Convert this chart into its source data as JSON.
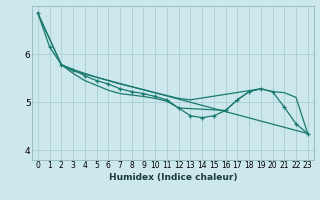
{
  "xlabel": "Humidex (Indice chaleur)",
  "bg_color": "#cce8ed",
  "grid_color": "#aacdd4",
  "line_color": "#1a7a6e",
  "xlim": [
    -0.5,
    23.5
  ],
  "ylim": [
    3.8,
    7.0
  ],
  "yticks": [
    4,
    5,
    6
  ],
  "xticks": [
    0,
    1,
    2,
    3,
    4,
    5,
    6,
    7,
    8,
    9,
    10,
    11,
    12,
    13,
    14,
    15,
    16,
    17,
    18,
    19,
    20,
    21,
    22,
    23
  ],
  "series": [
    {
      "x": [
        0,
        1,
        2,
        3,
        4,
        5,
        6,
        7,
        8,
        9,
        10,
        11,
        12,
        13,
        14,
        15,
        16,
        17,
        18,
        19,
        20,
        21,
        22,
        23
      ],
      "y": [
        6.85,
        6.15,
        5.78,
        5.68,
        5.55,
        5.45,
        5.38,
        5.28,
        5.22,
        5.18,
        5.12,
        5.05,
        4.88,
        4.72,
        4.68,
        4.72,
        4.83,
        5.05,
        5.22,
        5.28,
        5.22,
        4.9,
        4.55,
        4.35
      ],
      "has_markers": true
    },
    {
      "x": [
        0,
        2,
        3,
        4,
        5,
        6,
        7,
        8,
        9,
        10,
        11,
        12,
        13,
        19,
        20,
        21,
        22,
        23
      ],
      "y": [
        6.85,
        5.78,
        5.68,
        5.6,
        5.52,
        5.45,
        5.38,
        5.32,
        5.26,
        5.2,
        5.14,
        5.08,
        5.05,
        5.28,
        5.22,
        5.2,
        5.1,
        4.35
      ],
      "has_markers": false
    },
    {
      "x": [
        0,
        2,
        3,
        23
      ],
      "y": [
        6.85,
        5.78,
        5.65,
        4.35
      ],
      "has_markers": false
    },
    {
      "x": [
        2,
        3,
        4,
        5,
        6,
        7,
        8,
        9,
        10,
        11,
        12,
        16,
        17,
        18,
        19
      ],
      "y": [
        5.78,
        5.6,
        5.45,
        5.35,
        5.25,
        5.18,
        5.15,
        5.12,
        5.08,
        5.02,
        4.88,
        4.83,
        5.05,
        5.22,
        5.28
      ],
      "has_markers": false
    }
  ]
}
